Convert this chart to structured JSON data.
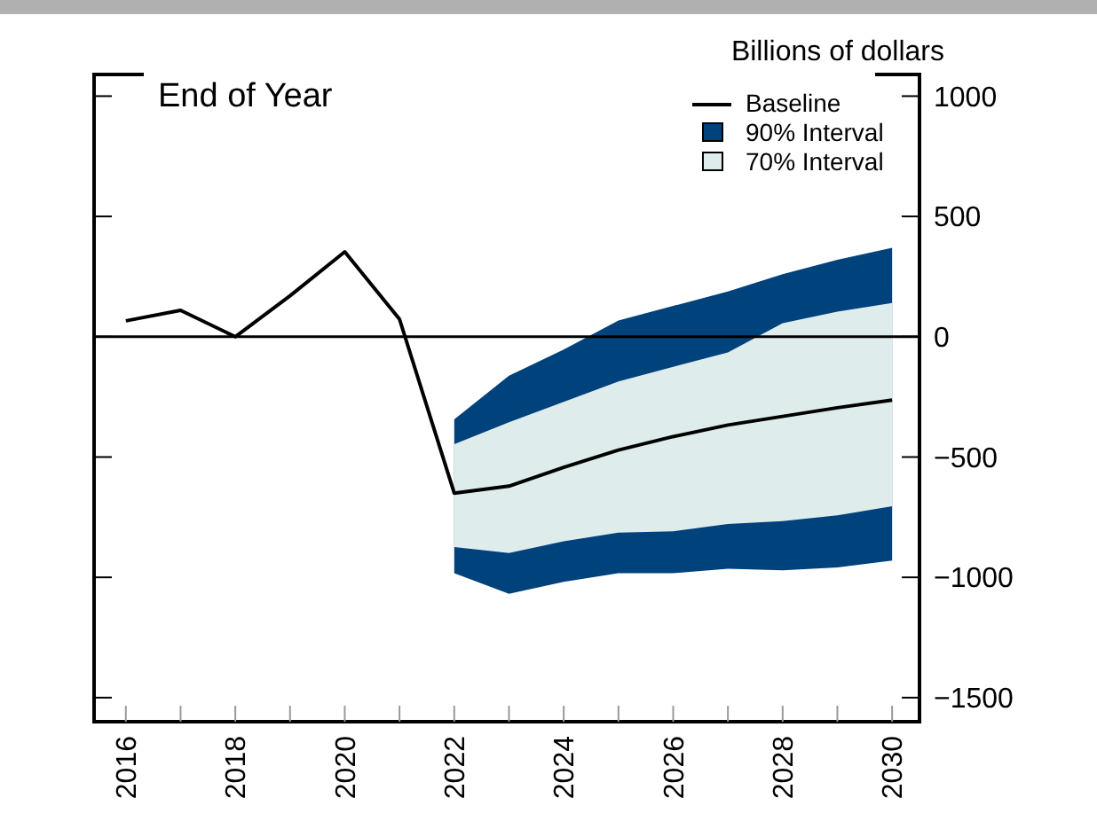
{
  "chart_data": {
    "type": "line",
    "title": "End of Year",
    "ylabel": "Billions of dollars",
    "xlim": [
      2015.42,
      2030.5
    ],
    "ylim": [
      -1600,
      1090
    ],
    "xticks": [
      2016,
      {
        "value": 2017,
        "label": null
      },
      2018,
      {
        "value": 2019,
        "label": null
      },
      2020,
      {
        "value": 2021,
        "label": null
      },
      2022,
      {
        "value": 2023,
        "label": null
      },
      2024,
      {
        "value": 2025,
        "label": null
      },
      2026,
      {
        "value": 2027,
        "label": null
      },
      2028,
      {
        "value": 2029,
        "label": null
      },
      2030
    ],
    "yticks": [
      {
        "value": -1500,
        "label": "−1500"
      },
      {
        "value": -1000,
        "label": "−1000"
      },
      {
        "value": -500,
        "label": "−500"
      },
      0,
      500,
      1000
    ],
    "series": [
      {
        "name": "90% Interval",
        "type": "area",
        "color": "#00427c",
        "x": [
          2022,
          2023,
          2024,
          2025,
          2026,
          2027,
          2028,
          2029,
          2030
        ],
        "values": [
          null,
          null,
          null,
          null,
          null,
          null,
          null,
          null,
          null
        ],
        "lower": [
          -983,
          -1068,
          -1019,
          -983,
          -983,
          -964,
          -971,
          -959,
          -930
        ],
        "upper": [
          -343,
          -162,
          -53,
          67,
          128,
          188,
          260,
          320,
          370
        ]
      },
      {
        "name": "70% Interval",
        "type": "area",
        "color": "#dfecec",
        "x": [
          2022,
          2023,
          2024,
          2025,
          2026,
          2027,
          2028,
          2029,
          2030
        ],
        "values": [
          null,
          null,
          null,
          null,
          null,
          null,
          null,
          null,
          null
        ],
        "lower": [
          -874,
          -899,
          -850,
          -814,
          -809,
          -778,
          -766,
          -742,
          -705
        ],
        "upper": [
          -447,
          -355,
          -271,
          -186,
          -125,
          -65,
          56,
          104,
          140
        ]
      },
      {
        "name": "Baseline",
        "color": "#000000",
        "x": [
          2016,
          2017,
          2018,
          2019,
          2020,
          2021,
          2022,
          2023,
          2024,
          2025,
          2026,
          2027,
          2028,
          2029,
          2030
        ],
        "values": [
          66,
          110,
          0,
          170,
          353,
          73,
          -650,
          -621,
          -543,
          -471,
          -415,
          -367,
          -331,
          -295,
          -263
        ]
      }
    ],
    "ref_lines": [
      {
        "axis": "y",
        "value": 0,
        "color": "#000000"
      }
    ],
    "legend": "top right",
    "tick_labels": "xy2"
  }
}
